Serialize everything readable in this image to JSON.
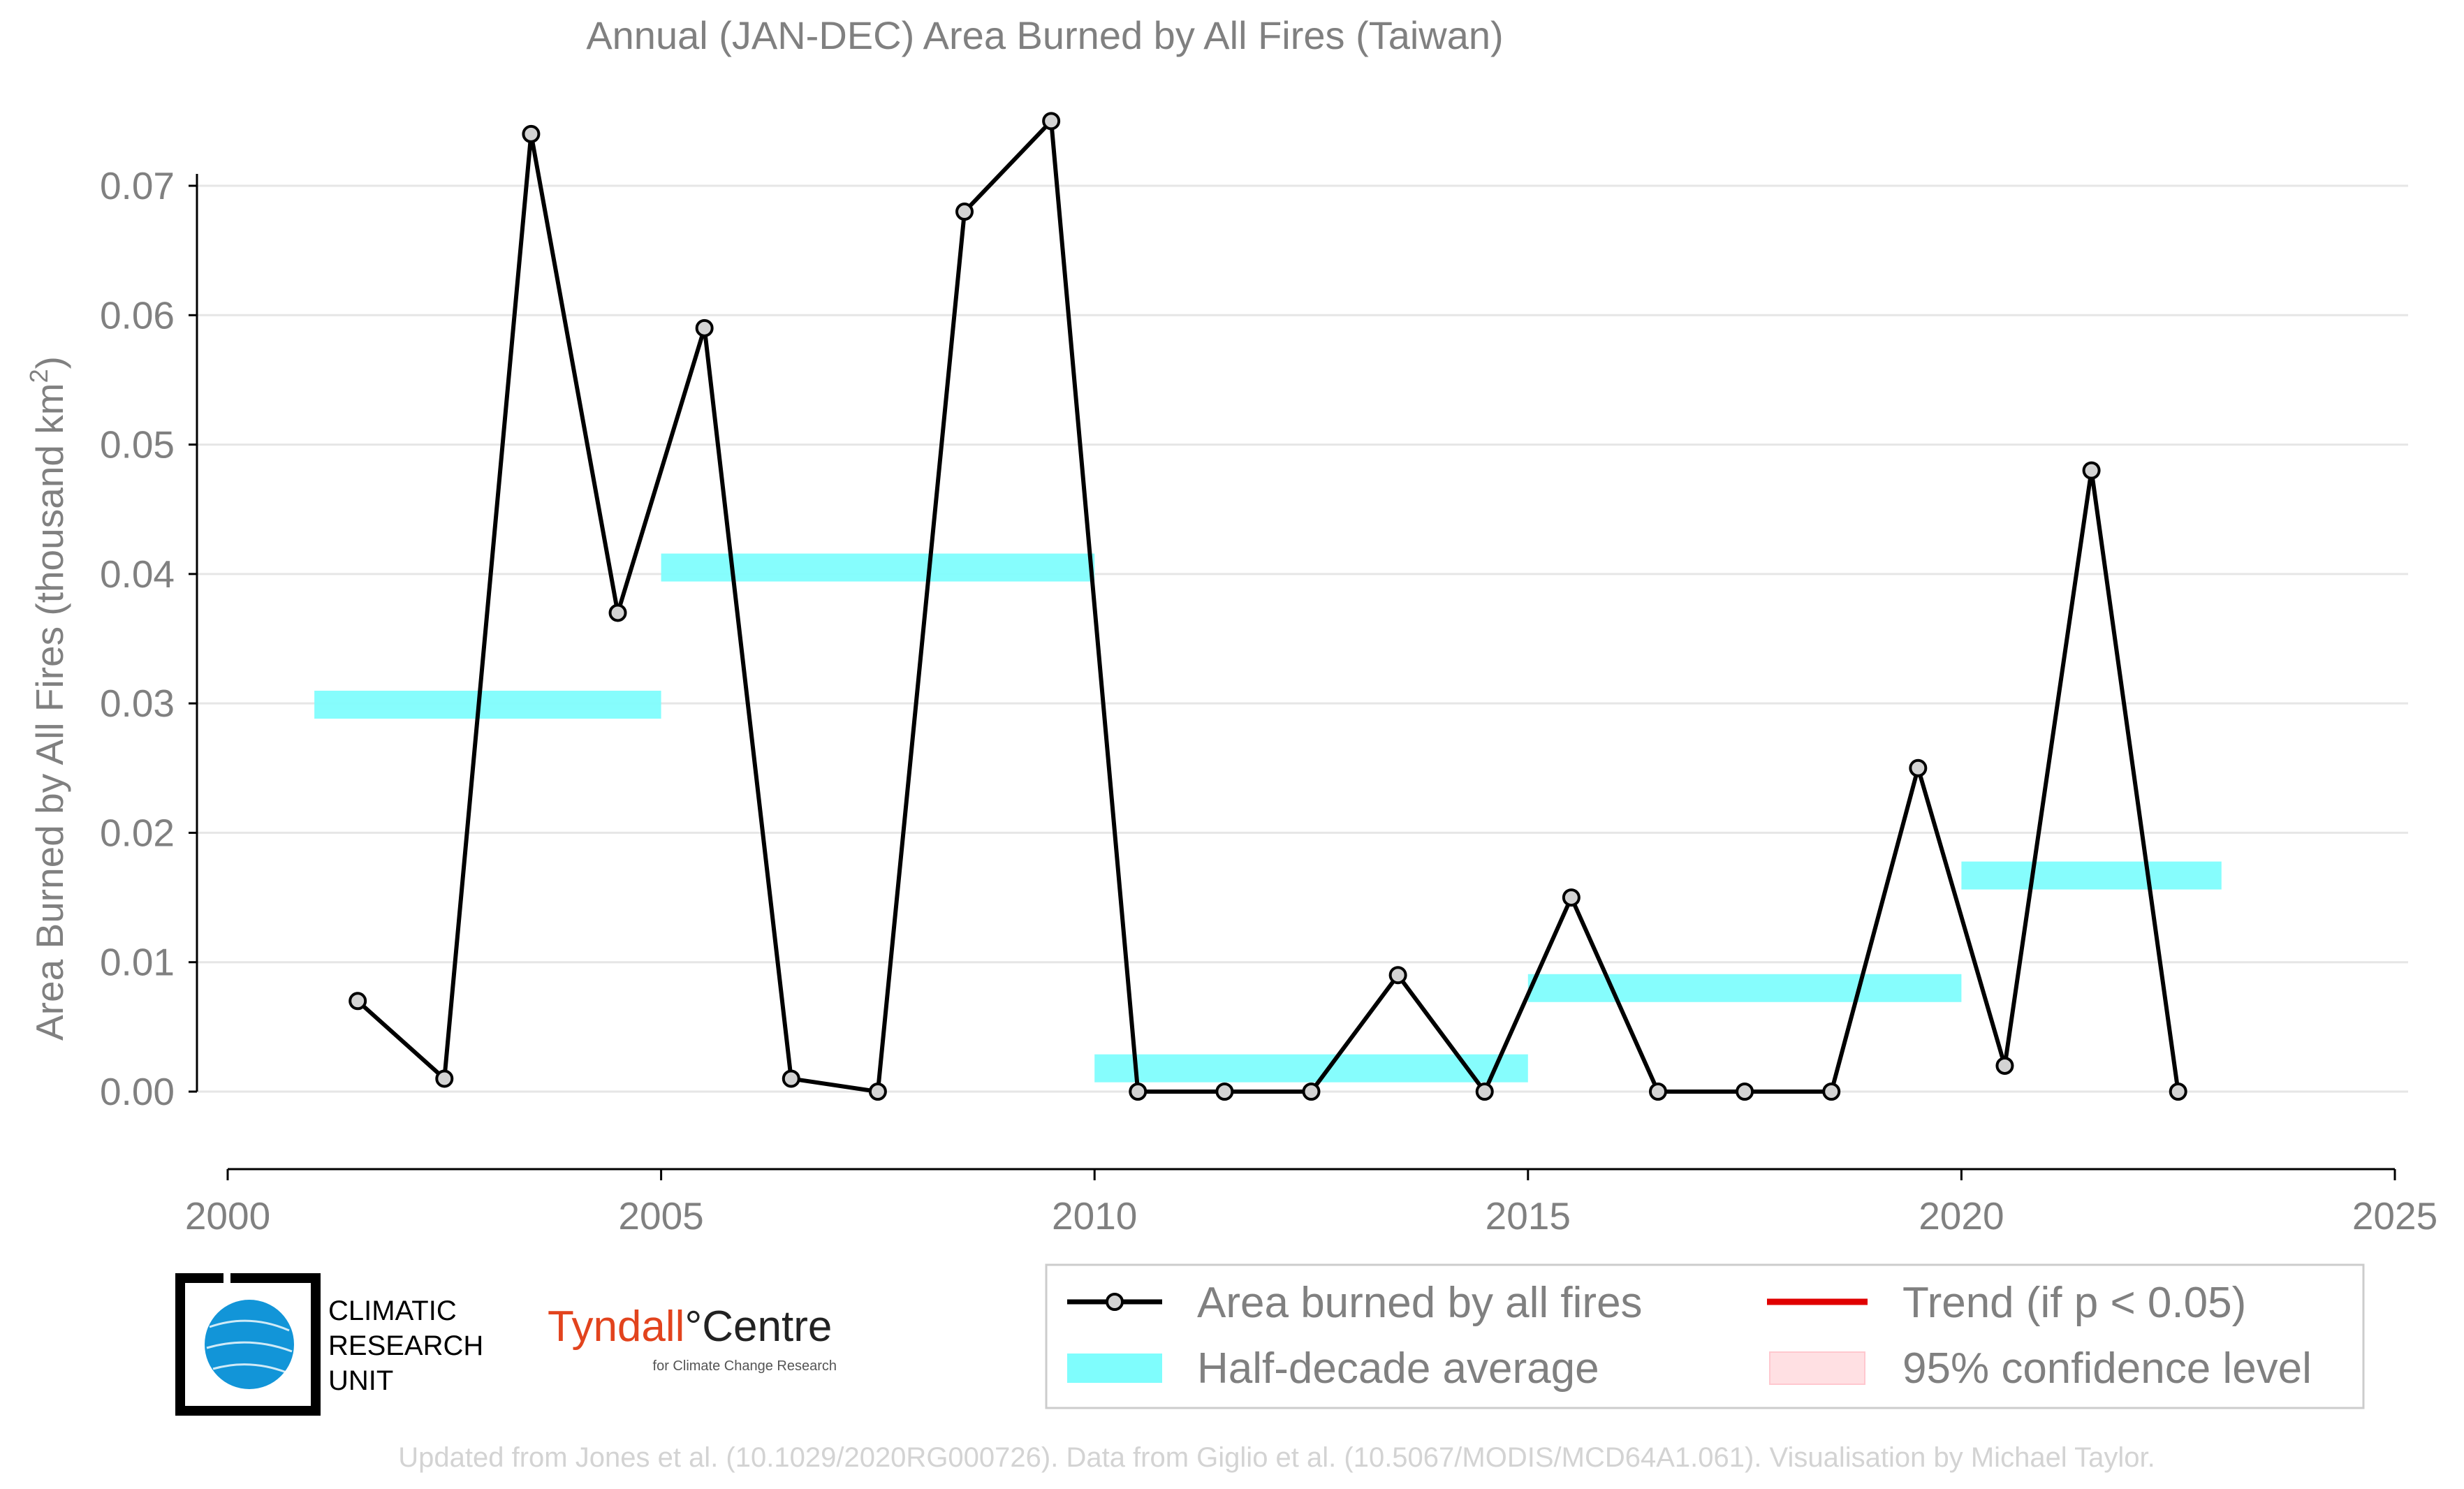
{
  "chart_data": {
    "type": "line",
    "title": "Annual (JAN-DEC) Area Burned by All Fires (Taiwan)",
    "ylabel": "Area Burned by All Fires (thousand km",
    "ylabel_sup": "2",
    "ylabel_suffix": ")",
    "xlim": [
      2000,
      2025
    ],
    "ylim": [
      -0.006,
      0.075
    ],
    "xticks": [
      2000,
      2005,
      2010,
      2015,
      2020,
      2025
    ],
    "yticks": [
      0.0,
      0.01,
      0.02,
      0.03,
      0.04,
      0.05,
      0.06,
      0.07
    ],
    "ytick_labels": [
      "0.00",
      "0.01",
      "0.02",
      "0.03",
      "0.04",
      "0.05",
      "0.06",
      "0.07"
    ],
    "grid": "horizontal",
    "series": [
      {
        "name": "Area burned by all fires",
        "color": "#000000",
        "marker_fill": "#d3d3d3",
        "x": [
          2001.5,
          2002.5,
          2003.5,
          2004.5,
          2005.5,
          2006.5,
          2007.5,
          2008.5,
          2009.5,
          2010.5,
          2011.5,
          2012.5,
          2013.5,
          2014.5,
          2015.5,
          2016.5,
          2017.5,
          2018.5,
          2019.5,
          2020.5,
          2021.5,
          2022.5
        ],
        "y": [
          0.007,
          0.001,
          0.074,
          0.037,
          0.059,
          0.001,
          0.0,
          0.068,
          0.075,
          0.0,
          0.0,
          0.0,
          0.009,
          0.0,
          0.015,
          0.0,
          0.0,
          0.0,
          0.025,
          0.002,
          0.048,
          0.0
        ]
      }
    ],
    "half_decade_averages": {
      "name": "Half-decade average",
      "color": "#7ffdfd",
      "segments": [
        {
          "x0": 2001,
          "x1": 2005,
          "y": 0.0299
        },
        {
          "x0": 2005,
          "x1": 2010,
          "y": 0.0405
        },
        {
          "x0": 2010,
          "x1": 2015,
          "y": 0.0018
        },
        {
          "x0": 2015,
          "x1": 2020,
          "y": 0.008
        },
        {
          "x0": 2020,
          "x1": 2023,
          "y": 0.0167
        }
      ]
    },
    "legend": {
      "position": "bottom-right",
      "items": [
        {
          "label": "Area burned by all fires",
          "kind": "line-marker",
          "color": "#000000"
        },
        {
          "label": "Trend (if p < 0.05)",
          "kind": "line",
          "color": "#e00000"
        },
        {
          "label": "Half-decade average",
          "kind": "band",
          "color": "#7ffdfd"
        },
        {
          "label": "95% confidence level",
          "kind": "patch",
          "color": "#ffe0e3"
        }
      ]
    }
  },
  "logos": {
    "cru": {
      "line1": "CLIMATIC",
      "line2": "RESEARCH",
      "line3": "UNIT"
    },
    "tyndall": {
      "name": "Tyndall",
      "suffix": "°Centre",
      "tagline": "for Climate Change Research"
    }
  },
  "footer": "Updated from Jones et al. (10.1029/2020RG000726). Data from Giglio et al. (10.5067/MODIS/MCD64A1.061). Visualisation by Michael Taylor."
}
